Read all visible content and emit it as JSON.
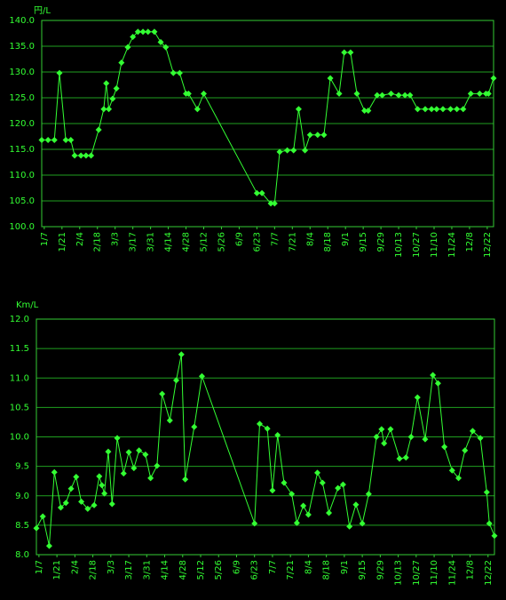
{
  "chart_data": [
    {
      "type": "line",
      "ylabel": "円/L",
      "color": "#33ff33",
      "x": [
        "1/5",
        "1/10",
        "1/15",
        "1/19",
        "1/24",
        "1/28",
        "1/31",
        "2/5",
        "2/9",
        "2/13",
        "2/19",
        "2/23",
        "2/25",
        "2/27",
        "3/1",
        "3/4",
        "3/8",
        "3/13",
        "3/17",
        "3/21",
        "3/25",
        "3/29",
        "4/3",
        "4/8",
        "4/12",
        "4/18",
        "4/23",
        "4/28",
        "4/30",
        "5/7",
        "5/12",
        "6/23",
        "6/27",
        "7/4",
        "7/7",
        "7/11",
        "7/17",
        "7/22",
        "7/26",
        "7/31",
        "8/4",
        "8/10",
        "8/15",
        "8/20",
        "8/27",
        "8/31",
        "9/5",
        "9/10",
        "9/16",
        "9/19",
        "9/26",
        "9/30",
        "10/7",
        "10/13",
        "10/18",
        "10/22",
        "10/28",
        "11/3",
        "11/8",
        "11/12",
        "11/17",
        "11/23",
        "11/28",
        "12/3",
        "12/9",
        "12/16",
        "12/21",
        "12/23",
        "12/27"
      ],
      "values": [
        116.8,
        116.8,
        116.8,
        129.8,
        116.8,
        116.8,
        113.8,
        113.8,
        113.8,
        113.8,
        118.8,
        122.8,
        127.8,
        122.8,
        124.8,
        126.8,
        131.8,
        134.8,
        136.8,
        137.8,
        137.8,
        137.8,
        137.8,
        135.8,
        134.8,
        129.8,
        129.8,
        125.8,
        125.8,
        122.8,
        125.8,
        106.5,
        106.5,
        104.5,
        104.5,
        114.5,
        114.8,
        114.8,
        122.8,
        114.8,
        117.8,
        117.8,
        117.8,
        128.8,
        125.8,
        133.8,
        133.8,
        125.8,
        122.5,
        122.5,
        125.5,
        125.5,
        125.8,
        125.5,
        125.5,
        125.5,
        122.8,
        122.8,
        122.8,
        122.8,
        122.8,
        122.8,
        122.8,
        122.8,
        125.8,
        125.8,
        125.8,
        125.8,
        128.8
      ],
      "xlim": [
        "1/5",
        "12/27"
      ],
      "xticks": [
        "1/7",
        "1/21",
        "2/4",
        "2/18",
        "3/3",
        "3/17",
        "3/31",
        "4/14",
        "4/28",
        "5/12",
        "5/26",
        "6/9",
        "6/23",
        "7/7",
        "7/21",
        "8/4",
        "8/18",
        "9/1",
        "9/15",
        "9/29",
        "10/13",
        "10/27",
        "11/10",
        "11/24",
        "12/8",
        "12/22"
      ],
      "ylim": [
        100,
        140
      ],
      "yticks": [
        {
          "value": 100,
          "label": "100.0"
        },
        {
          "value": 105,
          "label": "105.0"
        },
        {
          "value": 110,
          "label": "110.0"
        },
        {
          "value": 115,
          "label": "115.0"
        },
        {
          "value": 120,
          "label": "120.0"
        },
        {
          "value": 125,
          "label": "125.0"
        },
        {
          "value": 130,
          "label": "130.0"
        },
        {
          "value": 135,
          "label": "135.0"
        },
        {
          "value": 140,
          "label": "140.0"
        }
      ],
      "grid": true
    },
    {
      "type": "line",
      "ylabel": "Km/L",
      "color": "#33ff33",
      "x": [
        "1/5",
        "1/10",
        "1/15",
        "1/19",
        "1/24",
        "1/28",
        "2/1",
        "2/5",
        "2/9",
        "2/14",
        "2/19",
        "2/23",
        "2/25",
        "2/27",
        "3/1",
        "3/4",
        "3/8",
        "3/13",
        "3/17",
        "3/21",
        "3/25",
        "3/30",
        "4/3",
        "4/8",
        "4/12",
        "4/18",
        "4/23",
        "4/27",
        "4/30",
        "5/7",
        "5/13",
        "6/23",
        "6/27",
        "7/3",
        "7/7",
        "7/11",
        "7/16",
        "7/22",
        "7/26",
        "7/31",
        "8/4",
        "8/11",
        "8/15",
        "8/20",
        "8/27",
        "8/31",
        "9/5",
        "9/10",
        "9/15",
        "9/20",
        "9/26",
        "9/30",
        "10/2",
        "10/7",
        "10/14",
        "10/19",
        "10/23",
        "10/28",
        "11/3",
        "11/9",
        "11/13",
        "11/18",
        "11/24",
        "11/29",
        "12/4",
        "12/10",
        "12/16",
        "12/21",
        "12/23",
        "12/27"
      ],
      "values": [
        8.45,
        8.65,
        8.15,
        9.4,
        8.8,
        8.88,
        9.12,
        9.32,
        8.9,
        8.78,
        8.84,
        9.33,
        9.18,
        9.04,
        9.75,
        8.86,
        9.98,
        9.38,
        9.74,
        9.47,
        9.77,
        9.7,
        9.3,
        9.51,
        10.73,
        10.28,
        10.96,
        11.4,
        9.28,
        10.17,
        11.03,
        8.53,
        10.22,
        10.14,
        9.09,
        10.03,
        9.22,
        9.03,
        8.54,
        8.83,
        8.68,
        9.39,
        9.22,
        8.71,
        9.13,
        9.19,
        8.48,
        8.85,
        8.53,
        9.03,
        10.0,
        10.13,
        9.89,
        10.13,
        9.63,
        9.65,
        10.0,
        10.67,
        9.96,
        11.05,
        10.91,
        9.83,
        9.43,
        9.3,
        9.77,
        10.1,
        9.98,
        9.06,
        8.53,
        8.32
      ],
      "xlim": [
        "1/5",
        "12/27"
      ],
      "xticks": [
        "1/7",
        "1/21",
        "2/4",
        "2/18",
        "3/3",
        "3/17",
        "3/31",
        "4/14",
        "4/28",
        "5/12",
        "5/26",
        "6/9",
        "6/23",
        "7/7",
        "7/21",
        "8/4",
        "8/18",
        "9/1",
        "9/15",
        "9/29",
        "10/13",
        "10/27",
        "11/10",
        "11/24",
        "12/8",
        "12/22"
      ],
      "ylim": [
        8,
        12
      ],
      "yticks": [
        {
          "value": 8,
          "label": "8.0"
        },
        {
          "value": 8.5,
          "label": "8.5"
        },
        {
          "value": 9,
          "label": "9.0"
        },
        {
          "value": 9.5,
          "label": "9.5"
        },
        {
          "value": 10,
          "label": "10.0"
        },
        {
          "value": 10.5,
          "label": "10.5"
        },
        {
          "value": 11,
          "label": "11.0"
        },
        {
          "value": 11.5,
          "label": "11.5"
        },
        {
          "value": 12,
          "label": "12.0"
        }
      ],
      "grid": true
    }
  ]
}
